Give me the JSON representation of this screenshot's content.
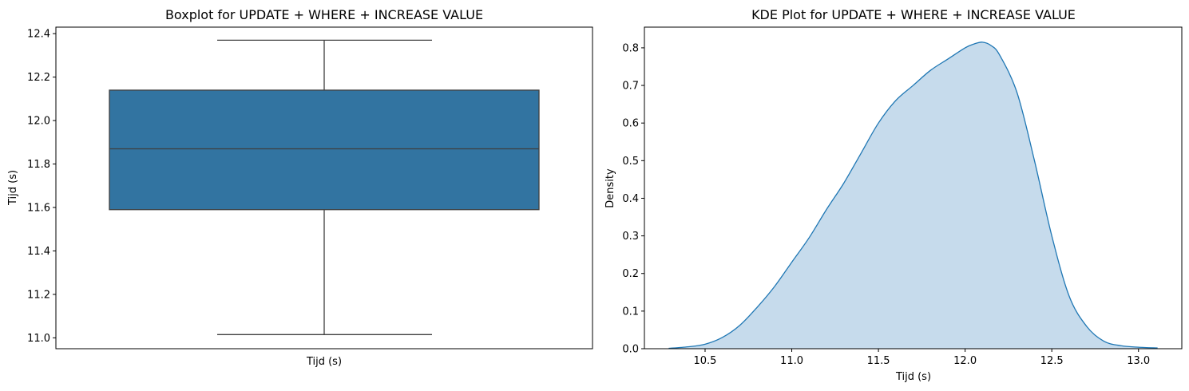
{
  "chart_data": [
    {
      "type": "box",
      "title": "Boxplot for UPDATE + WHERE + INCREASE VALUE",
      "xlabel": "Tijd (s)",
      "ylabel": "Tijd (s)",
      "ylim": [
        10.95,
        12.43
      ],
      "yticks": [
        "11.0",
        "11.2",
        "11.4",
        "11.6",
        "11.8",
        "12.0",
        "12.2",
        "12.4"
      ],
      "box": {
        "whisker_low": 11.015,
        "q1": 11.59,
        "median": 11.87,
        "q3": 12.14,
        "whisker_high": 12.37
      },
      "color": "#3274a1"
    },
    {
      "type": "area",
      "title": "KDE Plot for UPDATE + WHERE + INCREASE VALUE",
      "xlabel": "Tijd (s)",
      "ylabel": "Density",
      "xlim": [
        10.15,
        13.25
      ],
      "ylim": [
        0,
        0.855
      ],
      "xticks": [
        "10.5",
        "11.0",
        "11.5",
        "12.0",
        "12.5",
        "13.0"
      ],
      "yticks": [
        "0.0",
        "0.1",
        "0.2",
        "0.3",
        "0.4",
        "0.5",
        "0.6",
        "0.7",
        "0.8"
      ],
      "x": [
        10.29,
        10.4,
        10.5,
        10.6,
        10.7,
        10.8,
        10.9,
        11.0,
        11.1,
        11.2,
        11.3,
        11.4,
        11.5,
        11.6,
        11.7,
        11.8,
        11.9,
        12.0,
        12.05,
        12.1,
        12.15,
        12.2,
        12.3,
        12.4,
        12.5,
        12.6,
        12.7,
        12.8,
        12.9,
        13.0,
        13.11
      ],
      "y": [
        0.001,
        0.005,
        0.012,
        0.03,
        0.062,
        0.11,
        0.165,
        0.23,
        0.295,
        0.37,
        0.44,
        0.52,
        0.6,
        0.66,
        0.7,
        0.74,
        0.77,
        0.8,
        0.81,
        0.815,
        0.806,
        0.78,
        0.68,
        0.5,
        0.3,
        0.14,
        0.06,
        0.02,
        0.008,
        0.004,
        0.002
      ],
      "line_color": "#1f77b4",
      "fill_color": "#c6dbec"
    }
  ]
}
